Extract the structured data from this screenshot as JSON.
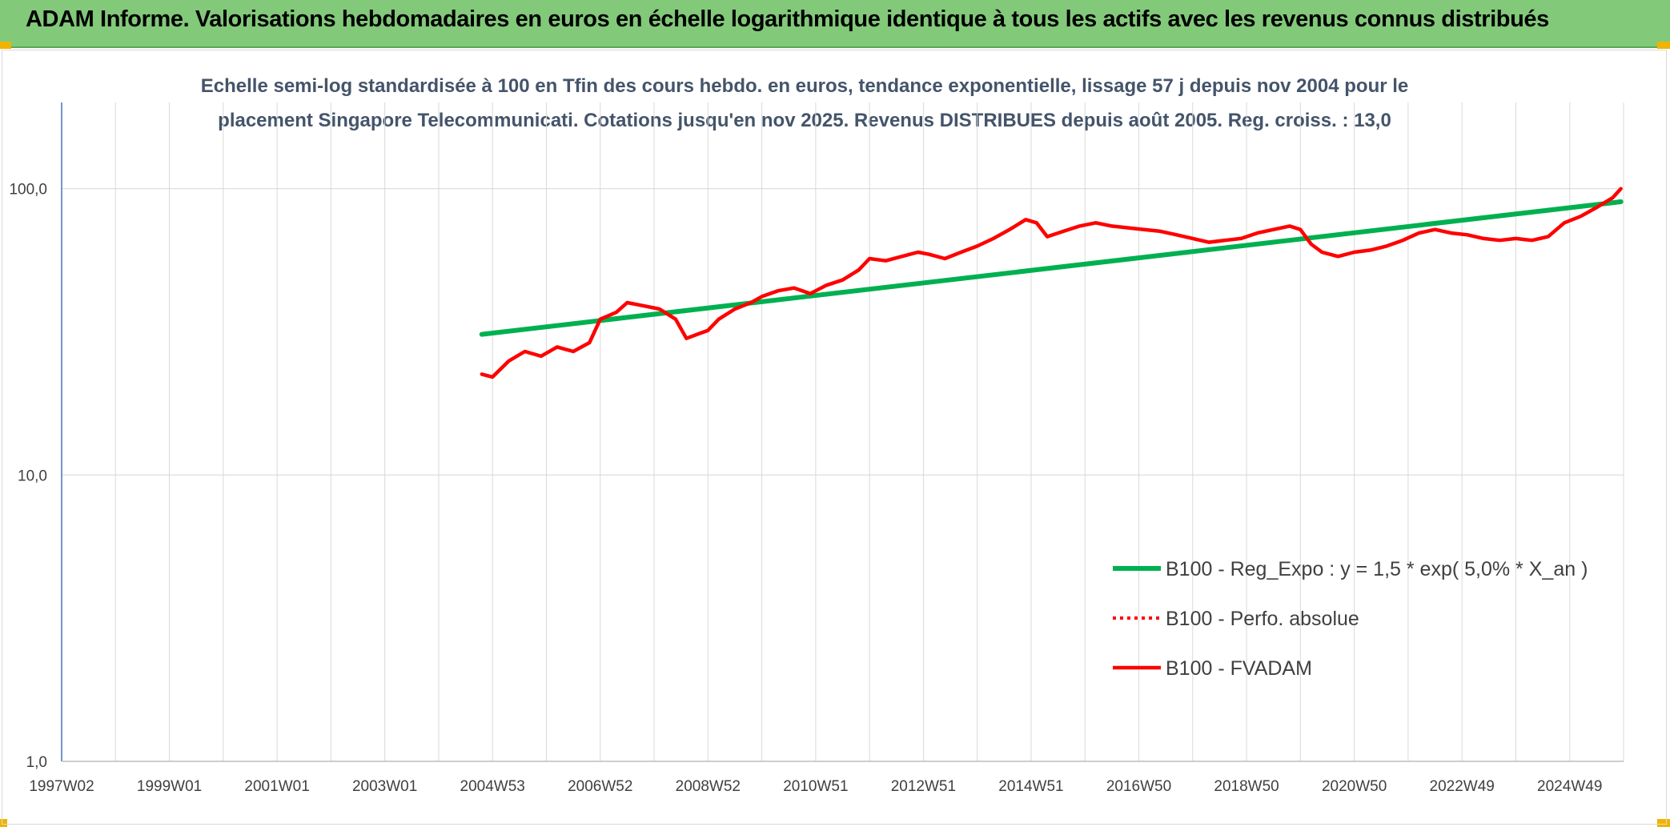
{
  "header": {
    "title": "ADAM Informe. Valorisations hebdomadaires en euros en échelle logarithmique identique à tous les actifs avec les revenus connus distribués"
  },
  "chart_data": {
    "type": "line",
    "subtitle_lines": [
      "Echelle semi-log standardisée à 100 en Tfin des cours hebdo. en euros, tendance exponentielle, lissage 57 j depuis nov 2004 pour le",
      "placement Singapore Telecommunicati. Cotations jusqu'en nov 2025. Revenus DISTRIBUES depuis août 2005. Reg. croiss. : 13,0"
    ],
    "y_scale": "log",
    "ylim": [
      1,
      200
    ],
    "y_ticks": [
      1,
      10,
      100
    ],
    "y_tick_labels": [
      "1,0",
      "10,0",
      "100,0"
    ],
    "xlim": [
      1997.0,
      2026.0
    ],
    "x_tick_positions": [
      1997.0,
      1999.0,
      2001.0,
      2003.0,
      2005.0,
      2007.0,
      2009.0,
      2011.0,
      2013.0,
      2015.0,
      2017.0,
      2019.0,
      2021.0,
      2023.0,
      2025.0
    ],
    "x_tick_labels": [
      "1997W02",
      "1999W01",
      "2001W01",
      "2003W01",
      "2004W53",
      "2006W52",
      "2008W52",
      "2010W51",
      "2012W51",
      "2014W51",
      "2016W50",
      "2018W50",
      "2020W50",
      "2022W49",
      "2024W49"
    ],
    "grid": true,
    "legend_position": "lower-right",
    "colors": {
      "trend": "#00b050",
      "perf": "#ff0000",
      "fvadam": "#ff0000",
      "axis": "#4472c4",
      "grid": "#d9d9d9"
    },
    "series": [
      {
        "name": "B100 - Reg_Expo : y = 1,5 * exp( 5,0% *  X_an )",
        "style": "solid-green",
        "x": [
          2004.8,
          2025.95
        ],
        "y": [
          31.0,
          90.0
        ]
      },
      {
        "name": "B100 - Perfo. absolue",
        "style": "dotted-red",
        "x": [],
        "y": []
      },
      {
        "name": "B100 - FVADAM",
        "style": "solid-red",
        "x": [
          2004.8,
          2005.0,
          2005.3,
          2005.6,
          2005.9,
          2006.2,
          2006.5,
          2006.8,
          2007.0,
          2007.3,
          2007.5,
          2007.8,
          2008.1,
          2008.4,
          2008.6,
          2008.8,
          2009.0,
          2009.2,
          2009.5,
          2009.8,
          2010.0,
          2010.3,
          2010.6,
          2010.9,
          2011.2,
          2011.5,
          2011.8,
          2012.0,
          2012.3,
          2012.6,
          2012.9,
          2013.1,
          2013.4,
          2013.7,
          2014.0,
          2014.3,
          2014.6,
          2014.9,
          2015.1,
          2015.3,
          2015.6,
          2015.9,
          2016.2,
          2016.5,
          2016.8,
          2017.1,
          2017.4,
          2017.7,
          2018.0,
          2018.3,
          2018.6,
          2018.9,
          2019.2,
          2019.5,
          2019.8,
          2020.0,
          2020.2,
          2020.4,
          2020.7,
          2021.0,
          2021.3,
          2021.6,
          2021.9,
          2022.2,
          2022.5,
          2022.8,
          2023.1,
          2023.4,
          2023.7,
          2024.0,
          2024.3,
          2024.6,
          2024.9,
          2025.2,
          2025.5,
          2025.8,
          2025.95
        ],
        "y": [
          22.5,
          22.0,
          25.0,
          27.0,
          26.0,
          28.0,
          27.0,
          29.0,
          35.0,
          37.0,
          40.0,
          39.0,
          38.0,
          35.0,
          30.0,
          31.0,
          32.0,
          35.0,
          38.0,
          40.0,
          42.0,
          44.0,
          45.0,
          43.0,
          46.0,
          48.0,
          52.0,
          57.0,
          56.0,
          58.0,
          60.0,
          59.0,
          57.0,
          60.0,
          63.0,
          67.0,
          72.0,
          78.0,
          76.0,
          68.0,
          71.0,
          74.0,
          76.0,
          74.0,
          73.0,
          72.0,
          71.0,
          69.0,
          67.0,
          65.0,
          66.0,
          67.0,
          70.0,
          72.0,
          74.0,
          72.0,
          64.0,
          60.0,
          58.0,
          60.0,
          61.0,
          63.0,
          66.0,
          70.0,
          72.0,
          70.0,
          69.0,
          67.0,
          66.0,
          67.0,
          66.0,
          68.0,
          76.0,
          80.0,
          86.0,
          93.0,
          100.0
        ]
      }
    ]
  }
}
